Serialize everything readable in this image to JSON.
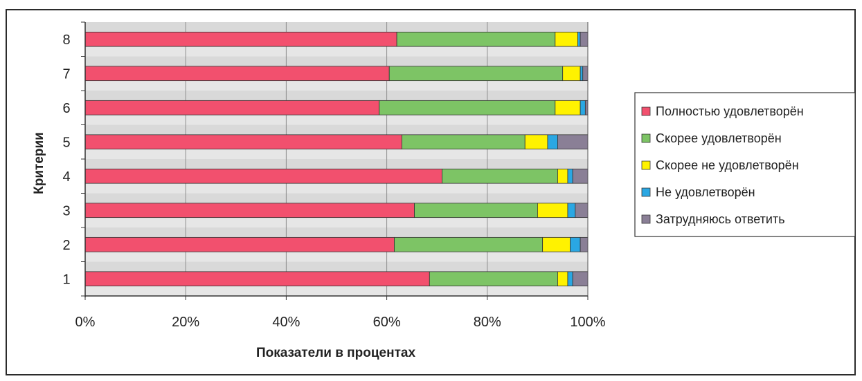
{
  "chart_data": {
    "type": "bar",
    "orientation": "horizontal",
    "stacked": "percent",
    "title": "",
    "xlabel": "Показатели в процентах",
    "ylabel": "Критерии",
    "categories": [
      "1",
      "2",
      "3",
      "4",
      "5",
      "6",
      "7",
      "8"
    ],
    "x_ticks": [
      "0%",
      "20%",
      "40%",
      "60%",
      "80%",
      "100%"
    ],
    "xlim": [
      0,
      100
    ],
    "grid": true,
    "legend_position": "right",
    "series": [
      {
        "name": "Полностью удовлетворён",
        "color": "#f2506e",
        "values": [
          68.5,
          61.5,
          65.5,
          71,
          63,
          58.5,
          60.5,
          62
        ]
      },
      {
        "name": "Скорее удовлетворён",
        "color": "#7dc465",
        "values": [
          25.5,
          29.5,
          24.5,
          23,
          24.5,
          35,
          34.5,
          31.5
        ]
      },
      {
        "name": "Скорее не удовлетворён",
        "color": "#fff200",
        "values": [
          2,
          5.5,
          6,
          2,
          4.5,
          5,
          3.5,
          4.5
        ]
      },
      {
        "name": "Не удовлетворён",
        "color": "#2aa7e3",
        "values": [
          1,
          2,
          1.5,
          1,
          2,
          1,
          0.5,
          0.5
        ]
      },
      {
        "name": "Затрудняюсь ответить",
        "color": "#8a7f96",
        "values": [
          3,
          1.5,
          2.5,
          3,
          6,
          0.5,
          1,
          1.5
        ]
      }
    ]
  }
}
